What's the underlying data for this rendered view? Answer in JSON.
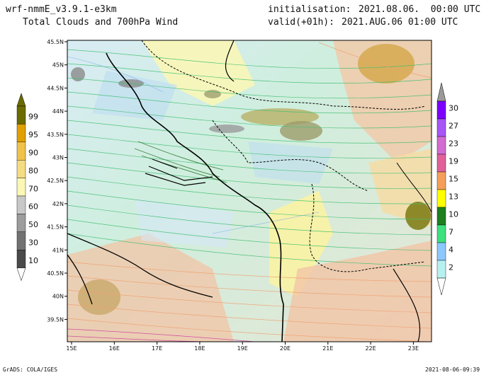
{
  "header": {
    "model": "wrf-nmmE_v3.9.1-e3km",
    "product": "Total Clouds and 700hPa Wind",
    "init_label": "initialisation:",
    "init_value": "2021.08.06.  00:00 UTC",
    "valid_label": "valid(+01h):",
    "valid_value": "2021.AUG.06 01:00 UTC"
  },
  "footer": {
    "left": "GrADS: COLA/IGES",
    "right": "2021-08-06-09:39"
  },
  "map": {
    "lon_ticks": [
      "15E",
      "16E",
      "17E",
      "18E",
      "19E",
      "20E",
      "21E",
      "22E",
      "23E"
    ],
    "lat_ticks": [
      "45.5N",
      "45N",
      "44.5N",
      "44N",
      "43.5N",
      "43N",
      "42.5N",
      "42N",
      "41.5N",
      "41N",
      "40.5N",
      "40N",
      "39.5N"
    ]
  },
  "colorbar_clouds": {
    "labels": [
      "99",
      "95",
      "90",
      "80",
      "70",
      "60",
      "50",
      "30",
      "10"
    ],
    "colors": [
      "#6b6b00",
      "#e0a000",
      "#f0c24a",
      "#f5dc82",
      "#fcf7b4",
      "#c8c8c8",
      "#9c9c9c",
      "#727272",
      "#4a4a4a"
    ]
  },
  "colorbar_wind": {
    "labels": [
      "30",
      "27",
      "23",
      "19",
      "15",
      "13",
      "10",
      "7",
      "4",
      "2"
    ],
    "colors": [
      "#7d00ff",
      "#a855f7",
      "#d26bd2",
      "#e0609a",
      "#f4a05a",
      "#ffff00",
      "#1e7f1e",
      "#3fe07f",
      "#8cc8ff",
      "#b8f0f0"
    ]
  }
}
